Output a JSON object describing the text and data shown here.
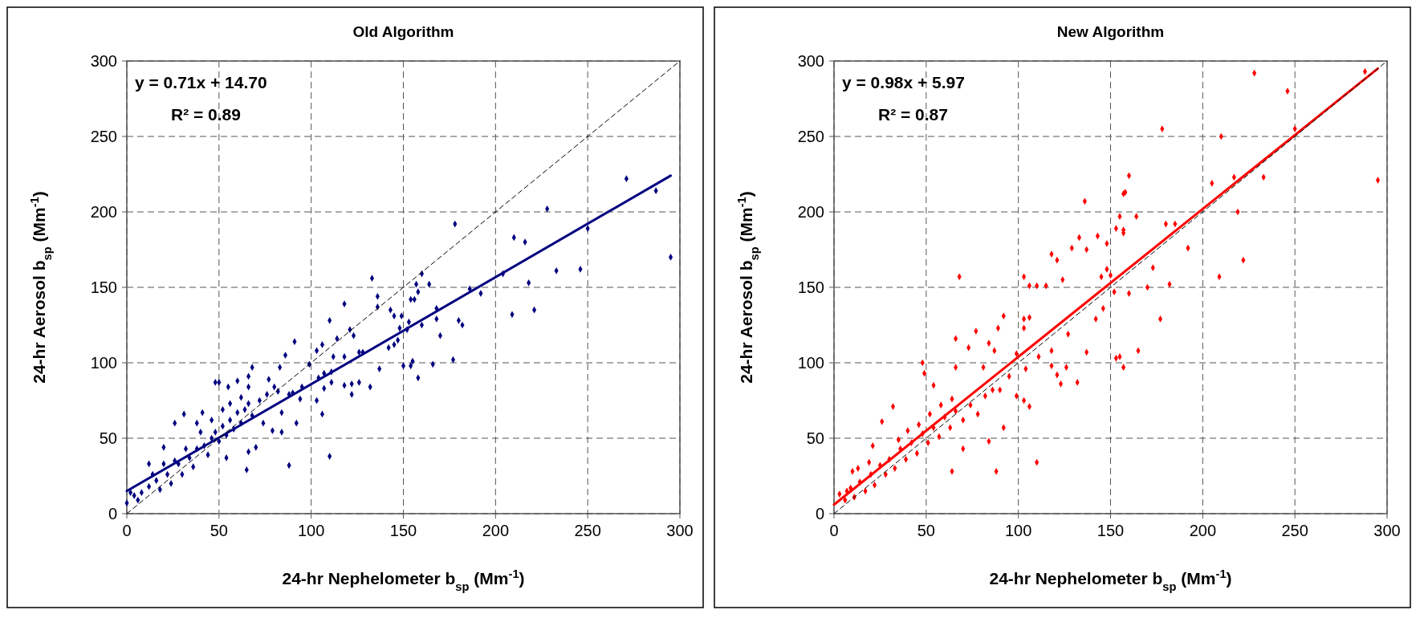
{
  "chart_data": [
    {
      "type": "scatter",
      "title": "Old Algorithm",
      "xlabel": "24-hr Nephelometer b$_{sp}$ (Mm$^{-1}$)",
      "ylabel": "24-hr Aerosol b$_{sp}$ (Mm$^{-1}$)",
      "annotations": [
        "y = 0.71x + 14.70",
        "R² = 0.89"
      ],
      "xlim": [
        0,
        300
      ],
      "ylim": [
        0,
        300
      ],
      "xticks": [
        0,
        50,
        100,
        150,
        200,
        250,
        300
      ],
      "yticks": [
        0,
        50,
        100,
        150,
        200,
        250,
        300
      ],
      "grid": true,
      "series": [
        {
          "marker": "diamond",
          "color": "#000080",
          "x": [
            271,
            287,
            295,
            228,
            250,
            210,
            216,
            233,
            246,
            218,
            204,
            221,
            209,
            186,
            192,
            178,
            160,
            164,
            157,
            158,
            154,
            156,
            133,
            136,
            136,
            143,
            145,
            149,
            153,
            160,
            168,
            168,
            180,
            182,
            170,
            177,
            166,
            150,
            154,
            155,
            158,
            148,
            152,
            142,
            145,
            147,
            137,
            118,
            110,
            121,
            123,
            114,
            126,
            128,
            91,
            86,
            103,
            106,
            112,
            118,
            83,
            68,
            99,
            104,
            107,
            111,
            118,
            122,
            126,
            132,
            122,
            111,
            107,
            103,
            106,
            92,
            88,
            110,
            84,
            79,
            70,
            65,
            66,
            54,
            48,
            50,
            55,
            60,
            66,
            77,
            82,
            90,
            95,
            31,
            26,
            41,
            38,
            20,
            12,
            0,
            4,
            8,
            12,
            16,
            18,
            22,
            24,
            28,
            30,
            34,
            36,
            38,
            42,
            44,
            46,
            48,
            50,
            52,
            54,
            56,
            58,
            60,
            62,
            64,
            66,
            68,
            72,
            74,
            76,
            80,
            84,
            88,
            94,
            2,
            6,
            14,
            20,
            26,
            32,
            40,
            46,
            52,
            56,
            66,
            62
          ],
          "values": [
            222,
            214,
            170,
            202,
            189,
            183,
            180,
            161,
            162,
            153,
            159,
            135,
            132,
            149,
            146,
            192,
            159,
            152,
            152,
            147,
            142,
            142,
            156,
            144,
            137,
            135,
            131,
            131,
            127,
            125,
            129,
            136,
            128,
            125,
            118,
            102,
            99,
            98,
            98,
            101,
            90,
            123,
            122,
            110,
            112,
            115,
            96,
            139,
            128,
            122,
            118,
            116,
            107,
            107,
            114,
            105,
            108,
            112,
            104,
            104,
            97,
            97,
            99,
            90,
            93,
            94,
            85,
            86,
            87,
            84,
            79,
            87,
            83,
            75,
            66,
            60,
            32,
            38,
            54,
            55,
            44,
            29,
            41,
            37,
            87,
            87,
            84,
            88,
            91,
            89,
            81,
            80,
            84,
            66,
            60,
            67,
            60,
            44,
            33,
            7,
            12,
            14,
            18,
            22,
            16,
            26,
            20,
            33,
            26,
            37,
            31,
            43,
            45,
            39,
            50,
            54,
            48,
            58,
            52,
            62,
            56,
            67,
            60,
            69,
            73,
            65,
            75,
            60,
            79,
            84,
            67,
            79,
            76,
            14,
            9,
            26,
            33,
            35,
            43,
            54,
            62,
            69,
            73,
            84,
            77
          ]
        },
        {
          "type": "line",
          "color": "#000080",
          "x": [
            0,
            295
          ],
          "values": [
            15,
            224
          ]
        },
        {
          "type": "line",
          "color": "#000000",
          "line_style": "dashed",
          "x": [
            0,
            300
          ],
          "values": [
            0,
            300
          ]
        }
      ]
    },
    {
      "type": "scatter",
      "title": "New Algorithm",
      "xlabel": "24-hr Nephelometer b$_{sp}$ (Mm$^{-1}$)",
      "ylabel": "24-hr Aerosol b$_{sp}$ (Mm$^{-1}$)",
      "annotations": [
        "y = 0.98x + 5.97",
        "R² = 0.87"
      ],
      "xlim": [
        0,
        300
      ],
      "ylim": [
        0,
        300
      ],
      "xticks": [
        0,
        50,
        100,
        150,
        200,
        250,
        300
      ],
      "yticks": [
        0,
        50,
        100,
        150,
        200,
        250,
        300
      ],
      "grid": true,
      "series": [
        {
          "marker": "diamond",
          "color": "#ff0000",
          "x": [
            228,
            288,
            246,
            295,
            178,
            210,
            250,
            205,
            217,
            233,
            219,
            222,
            209,
            192,
            180,
            185,
            160,
            158,
            157,
            136,
            155,
            164,
            153,
            157,
            157,
            143,
            133,
            137,
            148,
            129,
            118,
            121,
            124,
            68,
            103,
            106,
            110,
            115,
            145,
            148,
            150,
            173,
            170,
            182,
            177,
            165,
            160,
            152,
            146,
            142,
            137,
            127,
            118,
            118,
            126,
            121,
            123,
            132,
            153,
            155,
            157,
            103,
            106,
            103,
            92,
            89,
            77,
            66,
            73,
            84,
            87,
            110,
            88,
            64,
            92,
            84,
            70,
            32,
            26,
            48,
            49,
            54,
            66,
            81,
            99,
            103,
            106,
            95,
            104,
            111,
            99,
            3,
            6,
            9,
            11,
            14,
            17,
            20,
            22,
            25,
            28,
            30,
            33,
            36,
            39,
            42,
            45,
            48,
            51,
            54,
            57,
            60,
            63,
            66,
            70,
            74,
            78,
            82,
            86,
            90,
            35,
            40,
            46,
            19,
            13,
            10,
            21,
            7,
            52,
            58,
            64
          ],
          "values": [
            292,
            293,
            280,
            221,
            255,
            250,
            255,
            219,
            223,
            223,
            200,
            168,
            157,
            176,
            192,
            192,
            224,
            213,
            212,
            207,
            197,
            197,
            189,
            188,
            186,
            184,
            183,
            175,
            179,
            176,
            172,
            168,
            155,
            157,
            157,
            151,
            151,
            151,
            157,
            162,
            158,
            163,
            150,
            152,
            129,
            108,
            146,
            147,
            136,
            129,
            107,
            119,
            108,
            98,
            97,
            92,
            86,
            87,
            103,
            104,
            97,
            129,
            130,
            123,
            131,
            123,
            121,
            116,
            110,
            113,
            108,
            34,
            28,
            28,
            57,
            48,
            43,
            71,
            61,
            100,
            93,
            85,
            97,
            97,
            78,
            75,
            71,
            91,
            96,
            104,
            106,
            13,
            9,
            17,
            11,
            21,
            15,
            26,
            19,
            32,
            26,
            36,
            30,
            43,
            36,
            47,
            40,
            53,
            47,
            57,
            51,
            64,
            57,
            68,
            62,
            72,
            66,
            78,
            82,
            82,
            49,
            55,
            59,
            34,
            30,
            28,
            45,
            15,
            66,
            72,
            76
          ]
        },
        {
          "type": "line",
          "color": "#ff0000",
          "x": [
            0,
            295
          ],
          "values": [
            6,
            295
          ]
        },
        {
          "type": "line",
          "color": "#000000",
          "line_style": "dashed",
          "x": [
            0,
            300
          ],
          "values": [
            0,
            300
          ]
        }
      ]
    }
  ]
}
